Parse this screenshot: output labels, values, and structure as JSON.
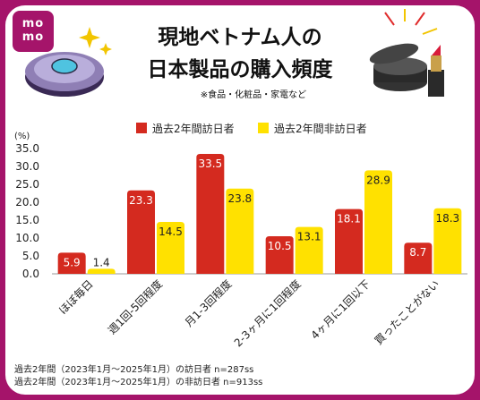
{
  "brand": {
    "line1": "mo",
    "line2": "mo",
    "color": "#a5146a"
  },
  "title_line1": "現地ベトナム人の",
  "title_line2": "日本製品の購入頻度",
  "subtitle": "※食品・化粧品・家電など",
  "notes": [
    "過去2年間（2023年1月～2025年1月）の訪日者 n=287ss",
    "過去2年間（2023年1月～2025年1月）の非訪日者 n=913ss"
  ],
  "chart_data": {
    "type": "bar",
    "ylabel": "(%)",
    "ylim": [
      0,
      35
    ],
    "yticks": [
      "35.0",
      "30.0",
      "25.0",
      "20.0",
      "15.0",
      "10.0",
      "5.0",
      "0.0"
    ],
    "ytick_values": [
      35,
      30,
      25,
      20,
      15,
      10,
      5,
      0
    ],
    "categories": [
      "ほぼ毎日",
      "週1回-5回程度",
      "月1-3回程度",
      "2-3ヶ月に1回程度",
      "4ヶ月に1回以下",
      "買ったことがない"
    ],
    "series": [
      {
        "name": "過去2年間訪日者",
        "color": "#d42a1f",
        "values": [
          5.9,
          23.3,
          33.5,
          10.5,
          18.1,
          8.7
        ],
        "labels": [
          "5.9",
          "23.3",
          "33.5",
          "10.5",
          "18.1",
          "8.7"
        ]
      },
      {
        "name": "過去2年間非訪日者",
        "color": "#ffe100",
        "values": [
          1.4,
          14.5,
          23.8,
          13.1,
          28.9,
          18.3
        ],
        "labels": [
          "1.4",
          "14.5",
          "23.8",
          "13.1",
          "28.9",
          "18.3"
        ]
      }
    ],
    "legend_position": "top"
  }
}
